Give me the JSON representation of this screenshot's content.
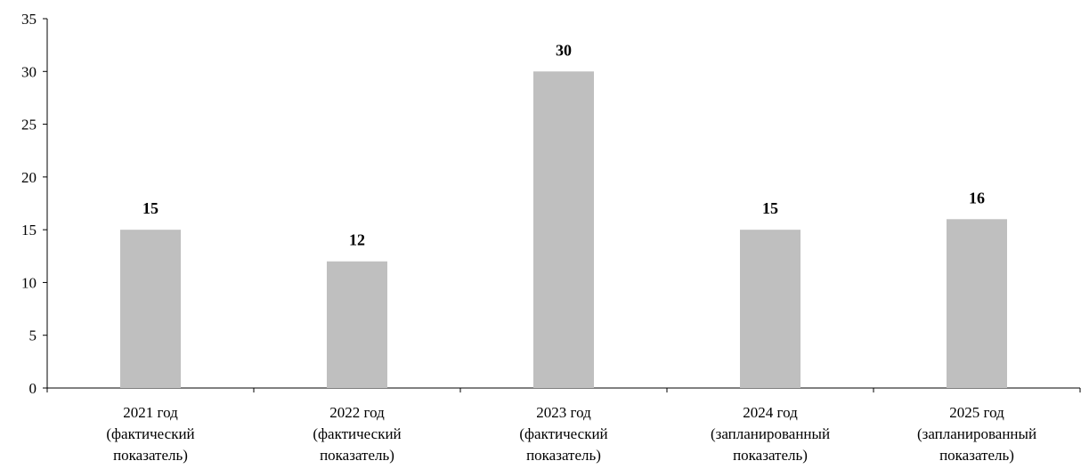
{
  "chart_data": {
    "type": "bar",
    "categories": [
      [
        "2021 год",
        "(фактический",
        "показатель)"
      ],
      [
        "2022 год",
        "(фактический",
        "показатель)"
      ],
      [
        "2023 год",
        "(фактический",
        "показатель)"
      ],
      [
        "2024 год",
        "(запланированный",
        "показатель)"
      ],
      [
        "2025 год",
        "(запланированный",
        "показатель)"
      ]
    ],
    "values": [
      15,
      12,
      30,
      15,
      16
    ],
    "data_labels": [
      "15",
      "12",
      "30",
      "15",
      "16"
    ],
    "title": "",
    "xlabel": "",
    "ylabel": "",
    "ylim": [
      0,
      35
    ],
    "yticks": [
      0,
      5,
      10,
      15,
      20,
      25,
      30,
      35
    ],
    "grid": false,
    "legend": "none",
    "bar_color": "#bfbfbf",
    "axis_color": "#000000"
  }
}
